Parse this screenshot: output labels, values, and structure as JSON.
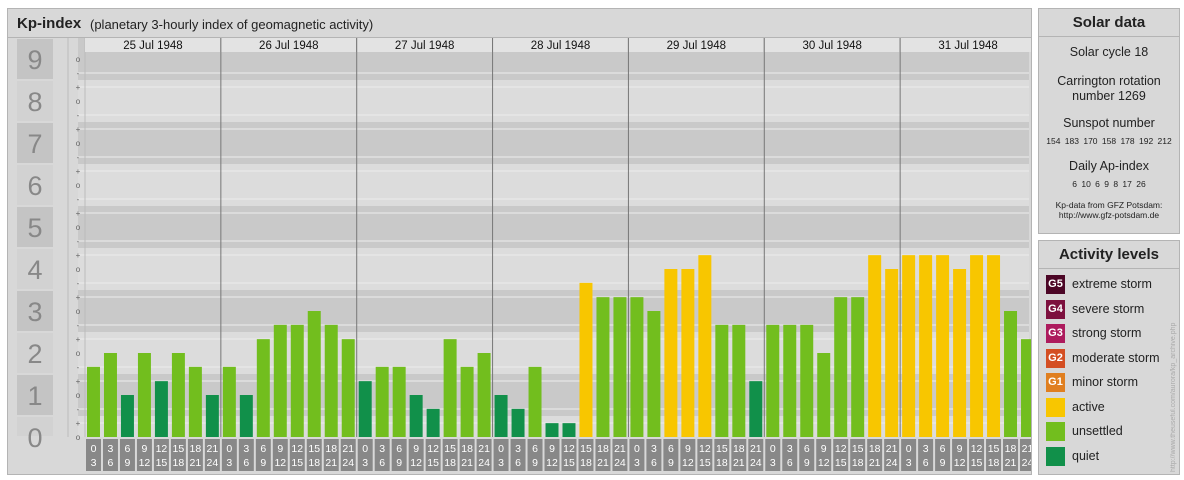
{
  "header": {
    "title": "Kp-index",
    "subtitle": "(planetary 3-hourly index of geomagnetic activity)"
  },
  "chart_data": {
    "type": "bar",
    "title": "Kp-index",
    "subtitle": "(planetary 3-hourly index of geomagnetic activity)",
    "ylim": [
      0,
      9
    ],
    "y_tick_labels": [
      "0",
      "1",
      "2",
      "3",
      "4",
      "5",
      "6",
      "7",
      "8",
      "9"
    ],
    "y_sub_labels": [
      "o",
      "+",
      "-"
    ],
    "days": [
      "25 Jul 1948",
      "26 Jul 1948",
      "27 Jul 1948",
      "28 Jul 1948",
      "29 Jul 1948",
      "30 Jul 1948",
      "31 Jul 1948"
    ],
    "interval_labels": [
      [
        "0",
        "3"
      ],
      [
        "3",
        "6"
      ],
      [
        "6",
        "9"
      ],
      [
        "9",
        "12"
      ],
      [
        "12",
        "15"
      ],
      [
        "15",
        "18"
      ],
      [
        "18",
        "21"
      ],
      [
        "21",
        "24"
      ]
    ],
    "values": [
      [
        1.67,
        2.0,
        1.0,
        2.0,
        1.33,
        2.0,
        1.67,
        1.0
      ],
      [
        1.67,
        1.0,
        2.33,
        2.67,
        2.67,
        3.0,
        2.67,
        2.33
      ],
      [
        1.33,
        1.67,
        1.67,
        1.0,
        0.67,
        2.33,
        1.67,
        2.0
      ],
      [
        1.0,
        0.67,
        1.67,
        0.33,
        0.33,
        3.67,
        3.33,
        3.33
      ],
      [
        3.33,
        3.0,
        4.0,
        4.0,
        4.33,
        2.67,
        2.67,
        1.33
      ],
      [
        2.67,
        2.67,
        2.67,
        2.0,
        3.33,
        3.33,
        4.33,
        4.0
      ],
      [
        4.33,
        4.33,
        4.33,
        4.0,
        4.33,
        4.33,
        3.0,
        2.33
      ]
    ],
    "grid": true
  },
  "colors": {
    "quiet": "#11904a",
    "unsettled": "#72be1e",
    "active": "#f8c600",
    "G1": "#e07f20",
    "G2": "#d44e22",
    "G3": "#ad1b5d",
    "G4": "#7d103e",
    "G5": "#4c0626"
  },
  "solar": {
    "title": "Solar data",
    "cycle": "Solar cycle 18",
    "carrington_1": "Carrington rotation",
    "carrington_2": "number 1269",
    "sunspot_label": "Sunspot number",
    "sunspot_values": "154 183 170 158 178 192 212",
    "ap_label": "Daily Ap-index",
    "ap_values": "6 10 6 9 8 17 26",
    "credit_1": "Kp-data from GFZ Potsdam:",
    "credit_2": "http://www.gfz-potsdam.de"
  },
  "activity": {
    "title": "Activity levels",
    "levels": [
      {
        "code": "G5",
        "label": "extreme storm",
        "color": "#4c0626"
      },
      {
        "code": "G4",
        "label": "severe storm",
        "color": "#7d103e"
      },
      {
        "code": "G3",
        "label": "strong storm",
        "color": "#ad1b5d"
      },
      {
        "code": "G2",
        "label": "moderate storm",
        "color": "#d44e22"
      },
      {
        "code": "G1",
        "label": "minor storm",
        "color": "#e07f20"
      },
      {
        "code": "",
        "label": "active",
        "color": "#f8c600"
      },
      {
        "code": "",
        "label": "unsettled",
        "color": "#72be1e"
      },
      {
        "code": "",
        "label": "quiet",
        "color": "#11904a"
      }
    ]
  },
  "watermark": "http://www.theuseful.com/aurora/kp_archive.php"
}
